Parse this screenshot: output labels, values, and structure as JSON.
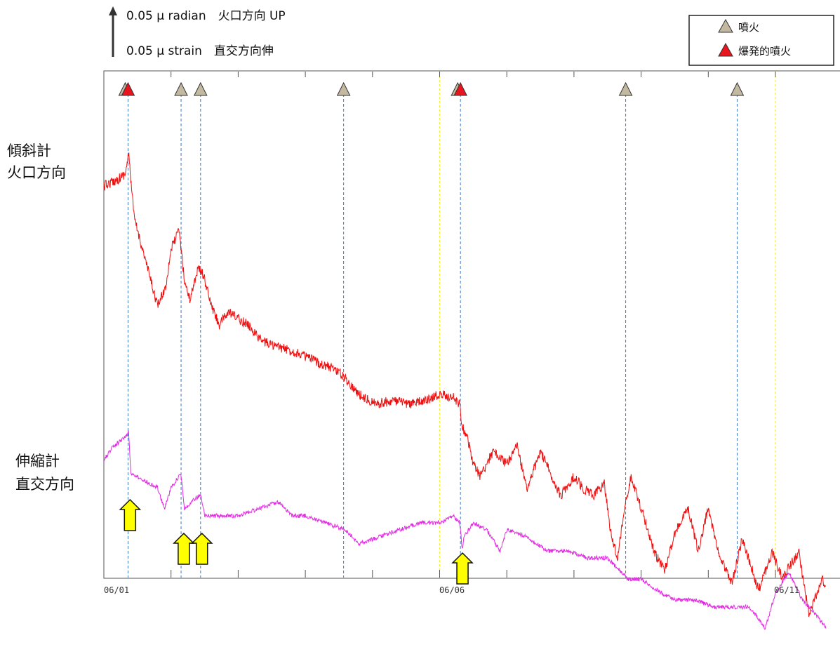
{
  "scale_bar": {
    "line1": "0.05 μ radian　火口方向 UP",
    "line2": "0.05 μ strain　直交方向伸"
  },
  "side_labels": {
    "tilt_line1": "傾斜計",
    "tilt_line2": "火口方向",
    "strain_line1": "伸縮計",
    "strain_line2": "直交方向"
  },
  "legend": {
    "items": [
      {
        "label": "噴火",
        "color": "#c2b9a0"
      },
      {
        "label": "爆発的噴火",
        "color": "#e8141e"
      }
    ]
  },
  "chart_data": {
    "type": "line",
    "title": "",
    "xlabel": "",
    "ylabel": "",
    "x_ticks": [
      "06/01",
      "06/06",
      "06/11"
    ],
    "xlim_days": [
      0,
      10.75
    ],
    "grid": false,
    "legend_position": "top-right",
    "colors": {
      "tilt": "#ee1010",
      "strain": "#e22ee2",
      "eruption_line": "#3a78c8",
      "day_line": "#f2ee40",
      "arrow": "#ffff00"
    },
    "eruptions": [
      {
        "day": 0.36,
        "type": "explosive"
      },
      {
        "day": 1.15,
        "type": "eruption"
      },
      {
        "day": 1.44,
        "type": "eruption"
      },
      {
        "day": 3.57,
        "type": "eruption"
      },
      {
        "day": 5.31,
        "type": "explosive"
      },
      {
        "day": 7.77,
        "type": "eruption"
      },
      {
        "day": 9.43,
        "type": "eruption"
      }
    ],
    "arrow_days": [
      0.39,
      1.19,
      1.46,
      5.34
    ],
    "series": [
      {
        "key": "tilt",
        "unit": "μ radian",
        "x": [
          0,
          0.2,
          0.32,
          0.37,
          0.45,
          0.6,
          0.8,
          0.92,
          1.0,
          1.12,
          1.2,
          1.28,
          1.4,
          1.48,
          1.6,
          1.72,
          1.85,
          2.0,
          2.15,
          2.35,
          2.6,
          2.9,
          3.2,
          3.45,
          3.6,
          3.8,
          4.05,
          4.3,
          4.55,
          4.8,
          5.0,
          5.2,
          5.3,
          5.33,
          5.42,
          5.5,
          5.6,
          5.8,
          6.0,
          6.15,
          6.3,
          6.5,
          6.8,
          7.0,
          7.15,
          7.3,
          7.45,
          7.55,
          7.65,
          7.75,
          7.85,
          8.0,
          8.2,
          8.35,
          8.5,
          8.7,
          8.85,
          9.0,
          9.15,
          9.35,
          9.5,
          9.6,
          9.75,
          9.95,
          10.1,
          10.35,
          10.5,
          10.7,
          10.75
        ],
        "y": [
          0.65,
          0.66,
          0.67,
          0.7,
          0.6,
          0.54,
          0.46,
          0.49,
          0.55,
          0.58,
          0.5,
          0.47,
          0.52,
          0.51,
          0.46,
          0.43,
          0.45,
          0.44,
          0.43,
          0.405,
          0.395,
          0.385,
          0.37,
          0.36,
          0.345,
          0.32,
          0.305,
          0.31,
          0.305,
          0.31,
          0.32,
          0.315,
          0.305,
          0.27,
          0.25,
          0.21,
          0.19,
          0.23,
          0.21,
          0.24,
          0.17,
          0.23,
          0.16,
          0.19,
          0.17,
          0.16,
          0.18,
          0.1,
          0.06,
          0.14,
          0.19,
          0.14,
          0.07,
          0.04,
          0.1,
          0.14,
          0.07,
          0.14,
          0.07,
          0.02,
          0.09,
          0.06,
          0.01,
          0.07,
          0.03,
          0.07,
          -0.03,
          0.03,
          0.01
        ]
      },
      {
        "key": "strain",
        "unit": "μ strain",
        "x": [
          0,
          0.15,
          0.3,
          0.37,
          0.4,
          0.6,
          0.8,
          0.9,
          1.0,
          1.15,
          1.2,
          1.3,
          1.44,
          1.5,
          1.7,
          2.0,
          2.3,
          2.6,
          2.8,
          3.0,
          3.3,
          3.6,
          3.8,
          4.1,
          4.4,
          4.7,
          5.0,
          5.2,
          5.3,
          5.34,
          5.36,
          5.5,
          5.7,
          5.9,
          6.0,
          6.3,
          6.6,
          6.9,
          7.2,
          7.5,
          7.8,
          8.0,
          8.3,
          8.5,
          8.8,
          9.1,
          9.4,
          9.6,
          9.7,
          9.85,
          10.0,
          10.2,
          10.4,
          10.6,
          10.75
        ],
        "y": [
          0.4,
          0.42,
          0.43,
          0.44,
          0.38,
          0.37,
          0.36,
          0.33,
          0.36,
          0.38,
          0.33,
          0.34,
          0.35,
          0.32,
          0.32,
          0.32,
          0.33,
          0.34,
          0.32,
          0.32,
          0.31,
          0.3,
          0.28,
          0.29,
          0.3,
          0.31,
          0.31,
          0.32,
          0.31,
          0.27,
          0.29,
          0.31,
          0.3,
          0.27,
          0.3,
          0.29,
          0.27,
          0.27,
          0.26,
          0.26,
          0.23,
          0.23,
          0.21,
          0.2,
          0.2,
          0.19,
          0.19,
          0.19,
          0.18,
          0.16,
          0.21,
          0.24,
          0.2,
          0.18,
          0.16
        ]
      }
    ]
  }
}
